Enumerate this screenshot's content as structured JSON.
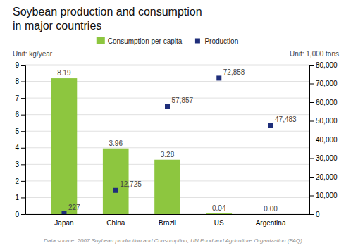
{
  "chart_data": {
    "type": "bar",
    "title": "Soybean production and consumption",
    "subtitle": "in major countries",
    "y_label": "Unit: kg/year",
    "y2_label": "Unit: 1,000 tons",
    "annotations": [
      "Data source: 2007 Soybean production and Consumption, UN Food and Agriculture Organization (FAQ)"
    ],
    "categories": [
      "Japan",
      "China",
      "Brazil",
      "US",
      "Argentina"
    ],
    "series": [
      {
        "name": "Consumption per capita",
        "type": "bar",
        "color": "#8dc63f",
        "values": [
          8.19,
          3.96,
          3.28,
          0.04,
          0.0
        ],
        "value_labels": [
          "8.19",
          "3.96",
          "3.28",
          "0.04",
          "0.00"
        ]
      },
      {
        "name": "Production",
        "type": "scatter",
        "marker": "square",
        "axis": "y2",
        "color": "#1f2e7a",
        "values": [
          227,
          12725,
          57857,
          72858,
          47483
        ],
        "value_labels": [
          "227",
          "12,725",
          "57,857",
          "72,858",
          "47,483"
        ]
      }
    ],
    "ylim": [
      0,
      9
    ],
    "yticks": [
      0,
      1,
      2,
      3,
      4,
      5,
      6,
      7,
      8,
      9
    ],
    "y2lim": [
      0,
      80000
    ],
    "y2ticks": [
      0,
      {
        "value": 10000,
        "label": "10,000"
      },
      {
        "value": 20000,
        "label": "20,000"
      },
      {
        "value": 30000,
        "label": "30,000"
      },
      {
        "value": 40000,
        "label": "40,000"
      },
      {
        "value": 50000,
        "label": "50,000"
      },
      {
        "value": 60000,
        "label": "60,000"
      },
      {
        "value": 70000,
        "label": "70,000"
      },
      {
        "value": 80000,
        "label": "80,000"
      }
    ],
    "grid": true,
    "legend": "top",
    "data_labels": true
  }
}
